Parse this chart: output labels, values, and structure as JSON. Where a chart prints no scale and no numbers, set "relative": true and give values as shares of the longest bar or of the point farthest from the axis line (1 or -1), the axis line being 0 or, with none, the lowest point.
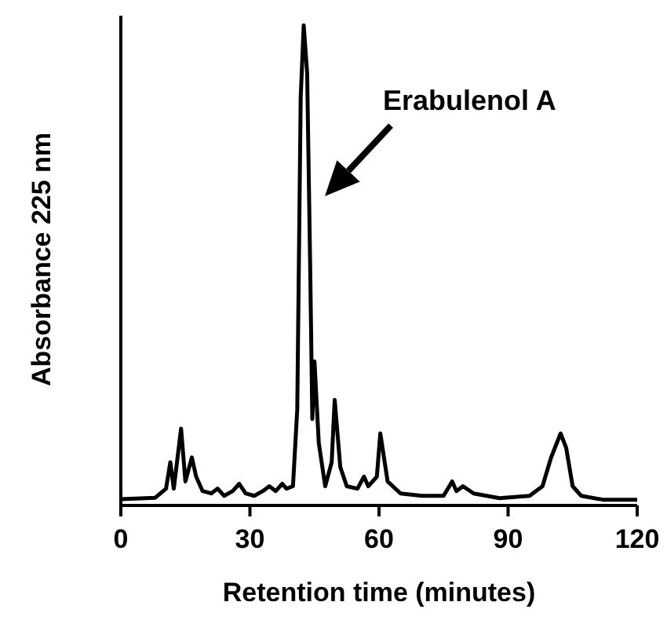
{
  "chart_data": {
    "type": "line",
    "relative": true,
    "xlabel": "Retention time (minutes)",
    "ylabel": "Absorbance 225 nm",
    "xlim": [
      0,
      120
    ],
    "xticks": [
      0,
      30,
      60,
      90,
      120
    ],
    "legend": false,
    "marker": "none",
    "annotations": [
      "Erabulenol A"
    ],
    "x": [
      0,
      8,
      10.5,
      11.5,
      12.3,
      14,
      15,
      16.5,
      17.5,
      19,
      21,
      22.5,
      24,
      26,
      27.5,
      29,
      31,
      33,
      34.5,
      36,
      37.5,
      38.5,
      40,
      41,
      41.8,
      42.5,
      43.3,
      44,
      44.5,
      45,
      46,
      47.5,
      49,
      49.7,
      51,
      52.5,
      55,
      56.5,
      57.5,
      59.5,
      60.3,
      62,
      65,
      70,
      75,
      77,
      78,
      79.5,
      82,
      88,
      95,
      98,
      100,
      102.2,
      103.5,
      105,
      107,
      112,
      120
    ],
    "series": [
      {
        "color": "#000000",
        "values": [
          0.013,
          0.016,
          0.035,
          0.09,
          0.035,
          0.16,
          0.05,
          0.1,
          0.06,
          0.03,
          0.025,
          0.035,
          0.02,
          0.03,
          0.045,
          0.025,
          0.02,
          0.03,
          0.04,
          0.03,
          0.045,
          0.035,
          0.04,
          0.2,
          0.85,
          1.0,
          0.9,
          0.5,
          0.18,
          0.3,
          0.13,
          0.04,
          0.09,
          0.22,
          0.08,
          0.04,
          0.035,
          0.06,
          0.04,
          0.06,
          0.15,
          0.05,
          0.025,
          0.02,
          0.02,
          0.05,
          0.03,
          0.04,
          0.025,
          0.015,
          0.02,
          0.04,
          0.1,
          0.15,
          0.12,
          0.04,
          0.02,
          0.012,
          0.012
        ]
      }
    ]
  }
}
